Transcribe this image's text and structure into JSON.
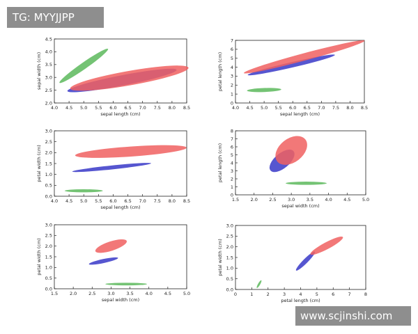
{
  "watermark_top": "TG: MYYJJPP",
  "watermark_bottom": "www.scjinshi.com",
  "colors": {
    "red": "#f06060",
    "blue": "#3838c8",
    "green": "#5cb85c",
    "purple": "#8a2ea8"
  },
  "chart_data": [
    {
      "type": "scatter",
      "xlabel": "sepal length (cm)",
      "ylabel": "sepal width (cm)",
      "xlim": [
        4.0,
        8.5
      ],
      "ylim": [
        2.0,
        4.5
      ],
      "xticks": [
        4.0,
        4.5,
        5.0,
        5.5,
        6.0,
        6.5,
        7.0,
        7.5,
        8.0,
        8.5
      ],
      "yticks": [
        2.0,
        2.5,
        3.0,
        3.5,
        4.0,
        4.5
      ],
      "ellipses": [
        {
          "cx": 5.0,
          "cy": 3.45,
          "rx": 1.05,
          "ry": 0.12,
          "angle": -35,
          "color": "green"
        },
        {
          "cx": 6.3,
          "cy": 2.88,
          "rx": 1.9,
          "ry": 0.2,
          "angle": -11,
          "color": "blue"
        },
        {
          "cx": 6.55,
          "cy": 2.97,
          "rx": 2.05,
          "ry": 0.28,
          "angle": -10,
          "color": "red"
        }
      ]
    },
    {
      "type": "scatter",
      "xlabel": "sepal length (cm)",
      "ylabel": "petal length (cm)",
      "xlim": [
        4.0,
        8.5
      ],
      "ylim": [
        0,
        7
      ],
      "xticks": [
        4.0,
        4.5,
        5.0,
        5.5,
        6.0,
        6.5,
        7.0,
        7.5,
        8.0,
        8.5
      ],
      "yticks": [
        0,
        1,
        2,
        3,
        4,
        5,
        6,
        7
      ],
      "ellipses": [
        {
          "cx": 5.0,
          "cy": 1.45,
          "rx": 0.6,
          "ry": 0.22,
          "angle": -2,
          "color": "green"
        },
        {
          "cx": 5.95,
          "cy": 4.25,
          "rx": 1.6,
          "ry": 0.25,
          "angle": -13,
          "color": "blue"
        },
        {
          "cx": 6.4,
          "cy": 5.15,
          "rx": 2.25,
          "ry": 0.32,
          "angle": -15,
          "color": "red"
        }
      ]
    },
    {
      "type": "scatter",
      "xlabel": "sepal length (cm)",
      "ylabel": "petal width (cm)",
      "xlim": [
        4.0,
        8.5
      ],
      "ylim": [
        0.0,
        3.0
      ],
      "xticks": [
        4.0,
        4.5,
        5.0,
        5.5,
        6.0,
        6.5,
        7.0,
        7.5,
        8.0,
        8.5
      ],
      "yticks": [
        0.0,
        0.5,
        1.0,
        1.5,
        2.0,
        2.5,
        3.0
      ],
      "ellipses": [
        {
          "cx": 5.0,
          "cy": 0.25,
          "rx": 0.65,
          "ry": 0.07,
          "angle": 0,
          "color": "green"
        },
        {
          "cx": 5.95,
          "cy": 1.32,
          "rx": 1.35,
          "ry": 0.09,
          "angle": -6,
          "color": "blue"
        },
        {
          "cx": 6.6,
          "cy": 2.05,
          "rx": 1.9,
          "ry": 0.23,
          "angle": -4,
          "color": "red"
        }
      ]
    },
    {
      "type": "scatter",
      "xlabel": "sepal width (cm)",
      "ylabel": "petal length (cm)",
      "xlim": [
        1.5,
        5.0
      ],
      "ylim": [
        0,
        8
      ],
      "xticks": [
        1.5,
        2.0,
        2.5,
        3.0,
        3.5,
        4.0,
        4.5,
        5.0
      ],
      "yticks": [
        0,
        1,
        2,
        3,
        4,
        5,
        6,
        7,
        8
      ],
      "ellipses": [
        {
          "cx": 3.4,
          "cy": 1.45,
          "rx": 0.55,
          "ry": 0.2,
          "angle": 0,
          "color": "green"
        },
        {
          "cx": 2.75,
          "cy": 4.25,
          "rx": 0.52,
          "ry": 0.3,
          "angle": -40,
          "color": "blue"
        },
        {
          "cx": 3.0,
          "cy": 5.55,
          "rx": 0.6,
          "ry": 0.5,
          "angle": -38,
          "color": "red"
        }
      ]
    },
    {
      "type": "scatter",
      "xlabel": "sepal width (cm)",
      "ylabel": "petal width (cm)",
      "xlim": [
        1.5,
        5.0
      ],
      "ylim": [
        0.0,
        3.0
      ],
      "xticks": [
        1.5,
        2.0,
        2.5,
        3.0,
        3.5,
        4.0,
        4.5,
        5.0
      ],
      "yticks": [
        0.0,
        0.5,
        1.0,
        1.5,
        2.0,
        2.5,
        3.0
      ],
      "ellipses": [
        {
          "cx": 3.4,
          "cy": 0.22,
          "rx": 0.55,
          "ry": 0.06,
          "angle": 0,
          "color": "green"
        },
        {
          "cx": 2.8,
          "cy": 1.3,
          "rx": 0.4,
          "ry": 0.09,
          "angle": -12,
          "color": "blue"
        },
        {
          "cx": 3.0,
          "cy": 2.0,
          "rx": 0.45,
          "ry": 0.2,
          "angle": -18,
          "color": "red"
        }
      ]
    },
    {
      "type": "scatter",
      "xlabel": "petal length (cm)",
      "ylabel": "petal width (cm)",
      "xlim": [
        0,
        8
      ],
      "ylim": [
        0.0,
        3.0
      ],
      "xticks": [
        0,
        1,
        2,
        3,
        4,
        5,
        6,
        7,
        8
      ],
      "yticks": [
        0.0,
        0.5,
        1.0,
        1.5,
        2.0,
        2.5,
        3.0
      ],
      "ellipses": [
        {
          "cx": 1.45,
          "cy": 0.25,
          "rx": 0.22,
          "ry": 0.06,
          "angle": -60,
          "color": "green"
        },
        {
          "cx": 4.3,
          "cy": 1.33,
          "rx": 0.7,
          "ry": 0.12,
          "angle": -45,
          "color": "blue"
        },
        {
          "cx": 5.6,
          "cy": 2.05,
          "rx": 1.05,
          "ry": 0.17,
          "angle": -28,
          "color": "red"
        }
      ]
    }
  ]
}
